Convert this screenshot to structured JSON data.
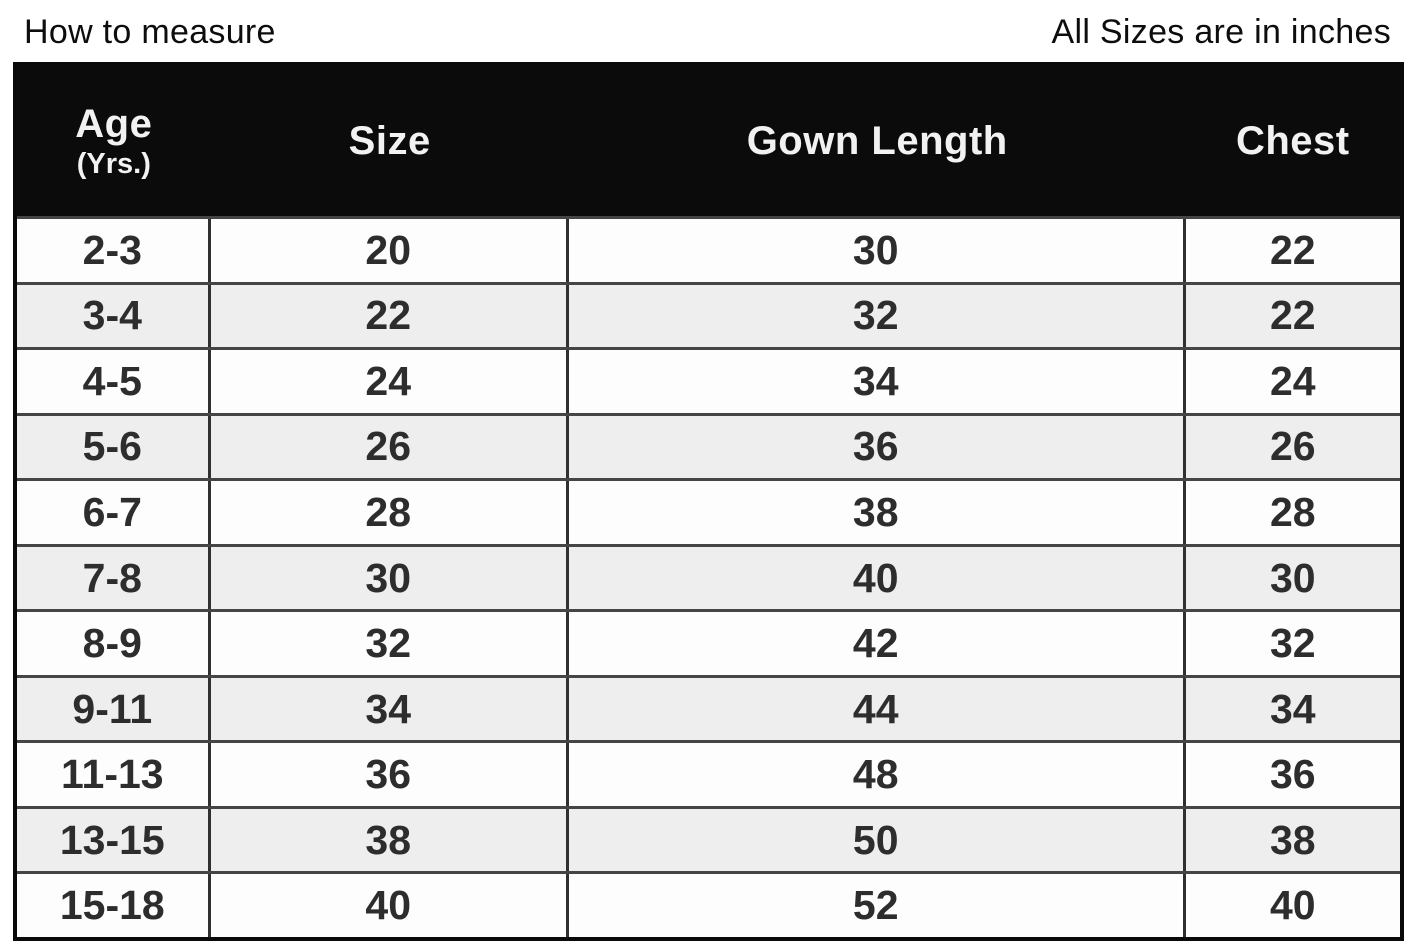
{
  "page": {
    "title": "How to measure",
    "units_note": "All Sizes are in inches"
  },
  "colors": {
    "header_bg": "#0b0b0b",
    "header_text": "#f2f2f2",
    "row_bg": "#fdfdfd",
    "row_alt_bg": "#eeeeee",
    "border_outer": "#0a0a0a",
    "border_inner": "#454545",
    "cell_text": "#2d2d2d"
  },
  "chart_data": {
    "type": "table",
    "title": "How to measure",
    "subtitle": "All Sizes are in inches",
    "columns": [
      {
        "label": "Age",
        "sublabel": "(Yrs.)"
      },
      {
        "label": "Size",
        "sublabel": ""
      },
      {
        "label": "Gown Length",
        "sublabel": ""
      },
      {
        "label": "Chest",
        "sublabel": ""
      }
    ],
    "rows": [
      [
        "2-3",
        "20",
        "30",
        "22"
      ],
      [
        "3-4",
        "22",
        "32",
        "22"
      ],
      [
        "4-5",
        "24",
        "34",
        "24"
      ],
      [
        "5-6",
        "26",
        "36",
        "26"
      ],
      [
        "6-7",
        "28",
        "38",
        "28"
      ],
      [
        "7-8",
        "30",
        "40",
        "30"
      ],
      [
        "8-9",
        "32",
        "42",
        "32"
      ],
      [
        "9-11",
        "34",
        "44",
        "34"
      ],
      [
        "11-13",
        "36",
        "48",
        "36"
      ],
      [
        "13-15",
        "38",
        "50",
        "38"
      ],
      [
        "15-18",
        "40",
        "52",
        "40"
      ]
    ]
  }
}
